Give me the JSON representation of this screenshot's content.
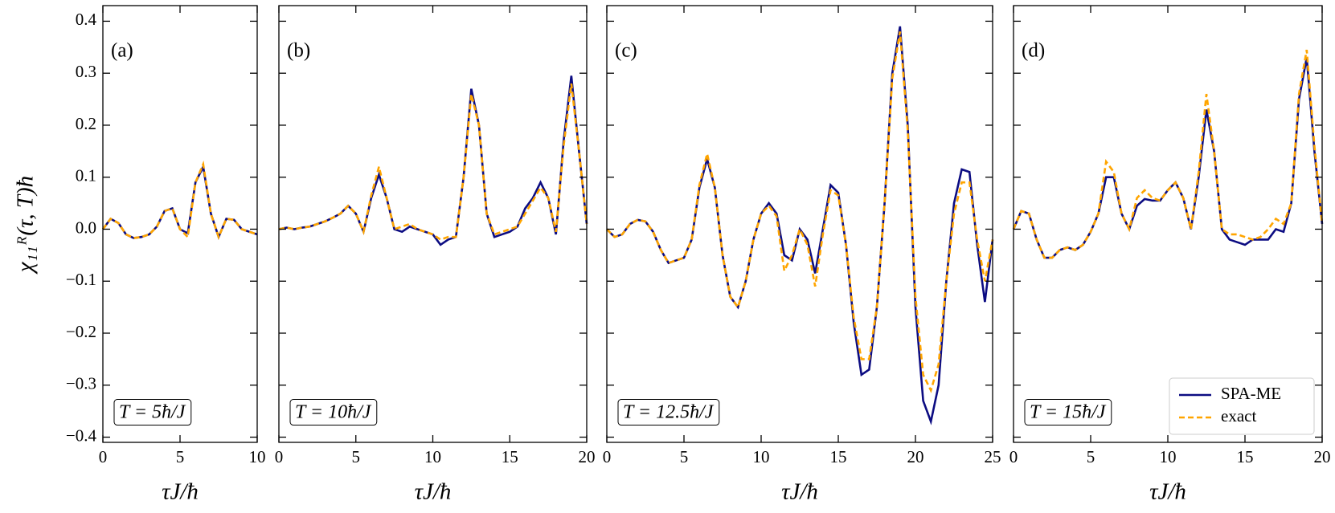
{
  "chart_data": [
    {
      "type": "line",
      "panel_label": "(a)",
      "annotation": "T = 5ħ/J",
      "xlabel": "τJ/ħ",
      "ylabel": "χ₁₁ᴿ(τ, T)ħ",
      "x": [
        0,
        0.5,
        1,
        1.5,
        2,
        2.5,
        3,
        3.5,
        4,
        4.5,
        5,
        5.5,
        6,
        6.5,
        7,
        7.5,
        8,
        8.5,
        9,
        9.5,
        10
      ],
      "series": [
        {
          "color": "#0c0c82",
          "linestyle": "solid",
          "values": [
            0,
            0.02,
            0.012,
            -0.01,
            -0.017,
            -0.015,
            -0.01,
            0.005,
            0.035,
            0.04,
            0,
            -0.008,
            0.09,
            0.12,
            0.03,
            -0.015,
            0.02,
            0.018,
            0,
            -0.005,
            -0.01
          ]
        },
        {
          "color": "#ffa500",
          "linestyle": "dashed",
          "values": [
            0,
            0.02,
            0.012,
            -0.01,
            -0.017,
            -0.015,
            -0.01,
            0.005,
            0.035,
            0.04,
            0,
            -0.015,
            0.09,
            0.125,
            0.03,
            -0.015,
            0.02,
            0.018,
            0,
            -0.005,
            -0.01
          ]
        }
      ],
      "xlim": [
        0,
        10
      ],
      "xticks": [
        0,
        5,
        10
      ],
      "ylim": [
        -0.41,
        0.43
      ],
      "yticks": [
        {
          "value": -0.4,
          "label": "−0.4"
        },
        {
          "value": -0.3,
          "label": "−0.3"
        },
        {
          "value": -0.2,
          "label": "−0.2"
        },
        {
          "value": -0.1,
          "label": "−0.1"
        },
        {
          "value": 0,
          "label": "0.0"
        },
        0.1,
        0.2,
        0.3,
        0.4
      ]
    },
    {
      "type": "line",
      "panel_label": "(b)",
      "annotation": "T = 10ħ/J",
      "xlabel": "τJ/ħ",
      "x": [
        0,
        0.5,
        1,
        1.5,
        2,
        2.5,
        3,
        3.5,
        4,
        4.5,
        5,
        5.5,
        6,
        6.5,
        7,
        7.5,
        8,
        8.5,
        9,
        9.5,
        10,
        10.5,
        11,
        11.5,
        12,
        12.5,
        13,
        13.5,
        14,
        14.5,
        15,
        15.5,
        16,
        16.5,
        17,
        17.5,
        18,
        18.5,
        19,
        19.5,
        20
      ],
      "series": [
        {
          "color": "#0c0c82",
          "linestyle": "solid",
          "values": [
            0,
            0.003,
            0,
            0.003,
            0.005,
            0.01,
            0.015,
            0.022,
            0.03,
            0.045,
            0.03,
            -0.005,
            0.06,
            0.105,
            0.06,
            0,
            -0.005,
            0.005,
            0,
            -0.005,
            -0.01,
            -0.03,
            -0.02,
            -0.015,
            0.1,
            0.27,
            0.2,
            0.03,
            -0.015,
            -0.01,
            -0.005,
            0.005,
            0.04,
            0.06,
            0.09,
            0.06,
            -0.01,
            0.17,
            0.295,
            0.15,
            0.01
          ]
        },
        {
          "color": "#ffa500",
          "linestyle": "dashed",
          "values": [
            0,
            0.003,
            0,
            0.003,
            0.005,
            0.01,
            0.015,
            0.022,
            0.03,
            0.045,
            0.03,
            -0.005,
            0.065,
            0.12,
            0.06,
            0,
            0.005,
            0.01,
            0,
            -0.005,
            -0.01,
            -0.02,
            -0.015,
            -0.015,
            0.1,
            0.26,
            0.2,
            0.03,
            -0.01,
            -0.005,
            0,
            0.005,
            0.03,
            0.055,
            0.08,
            0.06,
            -0.005,
            0.16,
            0.28,
            0.15,
            0.01
          ]
        }
      ],
      "xlim": [
        0,
        20
      ],
      "xticks": [
        0,
        5,
        10,
        15,
        20
      ],
      "ylim": [
        -0.41,
        0.43
      ],
      "yticks": [
        -0.4,
        -0.3,
        -0.2,
        -0.1,
        0,
        0.1,
        0.2,
        0.3,
        0.4
      ]
    },
    {
      "type": "line",
      "panel_label": "(c)",
      "annotation": "T = 12.5ħ/J",
      "xlabel": "τJ/ħ",
      "x": [
        0,
        0.5,
        1,
        1.5,
        2,
        2.5,
        3,
        3.5,
        4,
        4.5,
        5,
        5.5,
        6,
        6.5,
        7,
        7.5,
        8,
        8.5,
        9,
        9.5,
        10,
        10.5,
        11,
        11.5,
        12,
        12.5,
        13,
        13.5,
        14,
        14.5,
        15,
        15.5,
        16,
        16.5,
        17,
        17.5,
        18,
        18.5,
        19,
        19.5,
        20,
        20.5,
        21,
        21.5,
        22,
        22.5,
        23,
        23.5,
        24,
        24.5,
        25
      ],
      "series": [
        {
          "color": "#0c0c82",
          "linestyle": "solid",
          "values": [
            0,
            -0.015,
            -0.01,
            0.01,
            0.018,
            0.015,
            -0.005,
            -0.04,
            -0.065,
            -0.06,
            -0.055,
            -0.02,
            0.08,
            0.135,
            0.08,
            -0.05,
            -0.13,
            -0.15,
            -0.1,
            -0.02,
            0.03,
            0.05,
            0.03,
            -0.05,
            -0.06,
            0,
            -0.02,
            -0.085,
            0,
            0.085,
            0.07,
            -0.03,
            -0.18,
            -0.28,
            -0.27,
            -0.15,
            0.05,
            0.3,
            0.39,
            0.2,
            -0.15,
            -0.33,
            -0.37,
            -0.3,
            -0.1,
            0.05,
            0.115,
            0.11,
            -0.03,
            -0.14,
            -0.02
          ]
        },
        {
          "color": "#ffa500",
          "linestyle": "dashed",
          "values": [
            0,
            -0.015,
            -0.01,
            0.01,
            0.018,
            0.015,
            -0.005,
            -0.04,
            -0.065,
            -0.06,
            -0.055,
            -0.02,
            0.085,
            0.145,
            0.08,
            -0.05,
            -0.13,
            -0.15,
            -0.1,
            -0.02,
            0.03,
            0.045,
            0.025,
            -0.08,
            -0.05,
            0,
            -0.03,
            -0.11,
            -0.01,
            0.075,
            0.065,
            -0.03,
            -0.17,
            -0.25,
            -0.25,
            -0.15,
            0.05,
            0.29,
            0.38,
            0.19,
            -0.13,
            -0.28,
            -0.31,
            -0.26,
            -0.1,
            0.03,
            0.09,
            0.09,
            -0.02,
            -0.1,
            -0.02
          ]
        }
      ],
      "xlim": [
        0,
        25
      ],
      "xticks": [
        0,
        5,
        10,
        15,
        20,
        25
      ],
      "ylim": [
        -0.41,
        0.43
      ],
      "yticks": [
        -0.4,
        -0.3,
        -0.2,
        -0.1,
        0,
        0.1,
        0.2,
        0.3,
        0.4
      ]
    },
    {
      "type": "line",
      "panel_label": "(d)",
      "annotation": "T = 15ħ/J",
      "xlabel": "τJ/ħ",
      "legend": "lower right",
      "x": [
        0,
        0.5,
        1,
        1.5,
        2,
        2.5,
        3,
        3.5,
        4,
        4.5,
        5,
        5.5,
        6,
        6.5,
        7,
        7.5,
        8,
        8.5,
        9,
        9.5,
        10,
        10.5,
        11,
        11.5,
        12,
        12.5,
        13,
        13.5,
        14,
        14.5,
        15,
        15.5,
        16,
        16.5,
        17,
        17.5,
        18,
        18.5,
        19,
        19.5,
        20
      ],
      "series": [
        {
          "name": "SPA-ME",
          "color": "#0c0c82",
          "linestyle": "solid",
          "values": [
            0,
            0.035,
            0.03,
            -0.02,
            -0.055,
            -0.055,
            -0.04,
            -0.035,
            -0.04,
            -0.03,
            -0.005,
            0.03,
            0.1,
            0.1,
            0.03,
            0,
            0.045,
            0.058,
            0.055,
            0.055,
            0.075,
            0.09,
            0.06,
            0,
            0.1,
            0.23,
            0.15,
            0,
            -0.02,
            -0.025,
            -0.03,
            -0.02,
            -0.02,
            -0.02,
            0,
            -0.005,
            0.05,
            0.25,
            0.33,
            0.15,
            0.01
          ]
        },
        {
          "name": "exact",
          "color": "#ffa500",
          "linestyle": "dashed",
          "values": [
            0,
            0.035,
            0.03,
            -0.02,
            -0.055,
            -0.055,
            -0.04,
            -0.035,
            -0.04,
            -0.03,
            -0.005,
            0.03,
            0.13,
            0.11,
            0.03,
            0,
            0.06,
            0.075,
            0.06,
            0.055,
            0.075,
            0.09,
            0.06,
            0,
            0.11,
            0.26,
            0.15,
            0,
            -0.01,
            -0.01,
            -0.015,
            -0.02,
            -0.015,
            0,
            0.02,
            0.01,
            0.05,
            0.26,
            0.345,
            0.16,
            0.01
          ]
        }
      ],
      "xlim": [
        0,
        20
      ],
      "xticks": [
        0,
        5,
        10,
        15,
        20
      ],
      "ylim": [
        -0.41,
        0.43
      ],
      "yticks": [
        -0.4,
        -0.3,
        -0.2,
        -0.1,
        0,
        0.1,
        0.2,
        0.3,
        0.4
      ]
    }
  ]
}
